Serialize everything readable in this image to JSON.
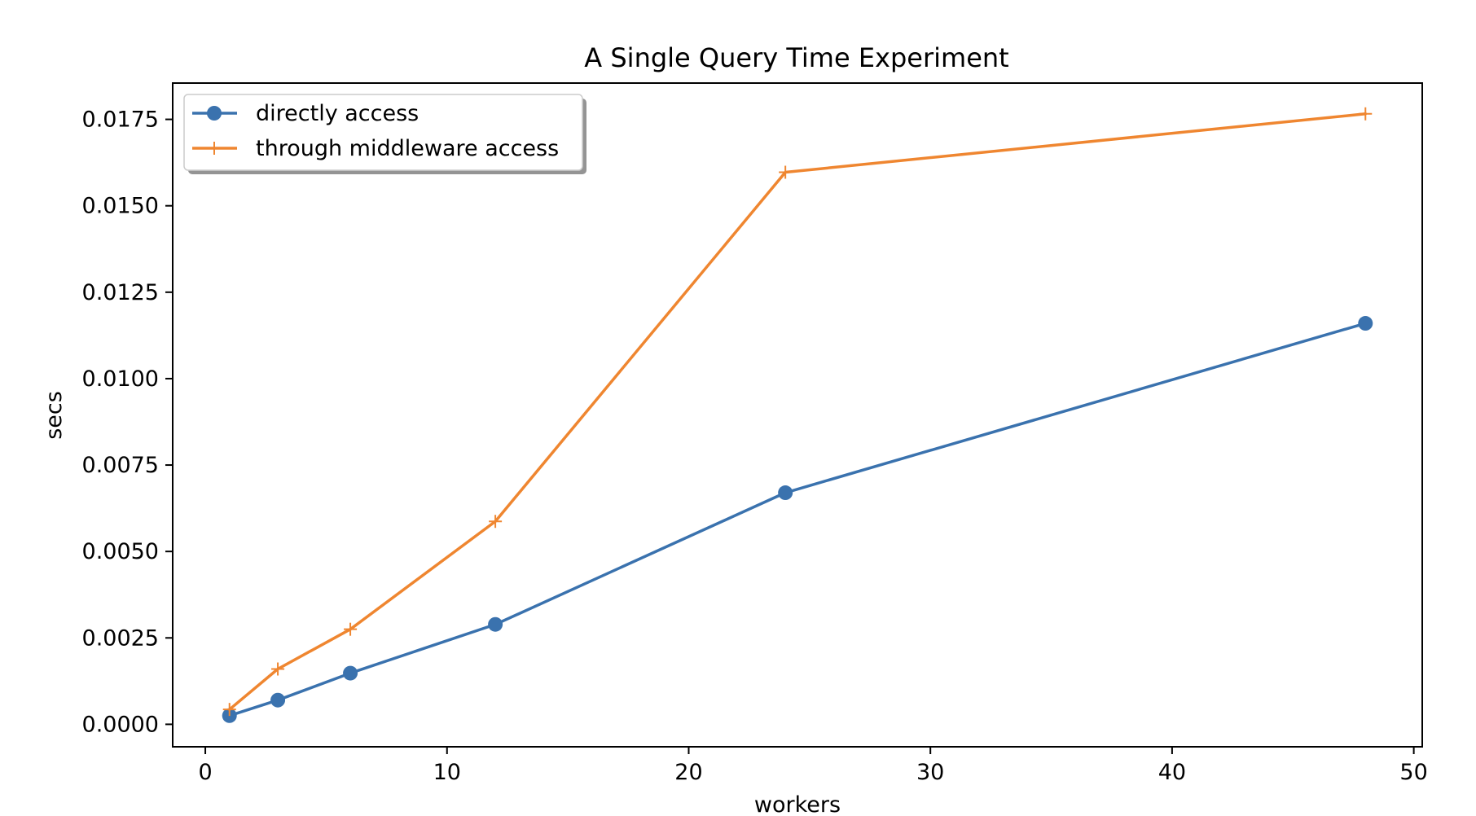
{
  "chart_data": {
    "type": "line",
    "title": "A Single Query Time Experiment",
    "xlabel": "workers",
    "ylabel": "secs",
    "xlim": [
      -1.35,
      50.35
    ],
    "ylim": [
      -0.00065,
      0.01855
    ],
    "xticks": [
      0,
      10,
      20,
      30,
      40,
      50
    ],
    "xtick_labels": [
      "0",
      "10",
      "20",
      "30",
      "40",
      "50"
    ],
    "yticks": [
      0.0,
      0.0025,
      0.005,
      0.0075,
      0.01,
      0.0125,
      0.015,
      0.0175
    ],
    "ytick_labels": [
      "0.0000",
      "0.0025",
      "0.0050",
      "0.0075",
      "0.0100",
      "0.0125",
      "0.0150",
      "0.0175"
    ],
    "grid": false,
    "legend_position": "upper-left",
    "x": [
      1,
      3,
      6,
      12,
      24,
      48
    ],
    "series": [
      {
        "name": "directly access",
        "marker": "circle",
        "color": "#3a72ae",
        "values": [
          0.00025,
          0.0007,
          0.00148,
          0.00289,
          0.0067,
          0.0116
        ]
      },
      {
        "name": "through middleware access",
        "marker": "plus",
        "color": "#ef8630",
        "values": [
          0.00043,
          0.0016,
          0.00275,
          0.00587,
          0.01597,
          0.01766
        ]
      }
    ]
  }
}
